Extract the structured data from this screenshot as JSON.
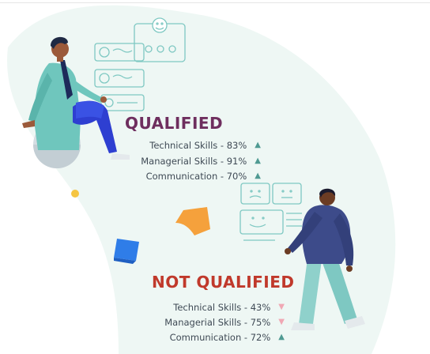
{
  "qualified": {
    "heading": "QUALIFIED",
    "accent": "#6e2e5e",
    "stats": [
      {
        "name": "Technical Skills",
        "value": "83%",
        "trend": "up",
        "trend_glyph": "▲"
      },
      {
        "name": "Managerial Skills",
        "value": "91%",
        "trend": "up",
        "trend_glyph": "▲"
      },
      {
        "name": "Communication",
        "value": "70%",
        "trend": "up",
        "trend_glyph": "▲"
      }
    ]
  },
  "not_qualified": {
    "heading": "NOT QUALIFIED",
    "accent": "#c0392b",
    "stats": [
      {
        "name": "Technical Skills",
        "value": "43%",
        "trend": "down",
        "trend_glyph": "▼"
      },
      {
        "name": "Managerial Skills",
        "value": "75%",
        "trend": "down",
        "trend_glyph": "▼"
      },
      {
        "name": "Communication",
        "value": "72%",
        "trend": "up",
        "trend_glyph": "▲"
      }
    ]
  },
  "colors": {
    "up": "#4f9a92",
    "down": "#f0a8b4",
    "background_blob": "#eef7f4"
  },
  "icons": [
    "smiley-card-icon",
    "neutral-face-card-icon",
    "sad-face-card-icon",
    "sticky-note-icon"
  ]
}
